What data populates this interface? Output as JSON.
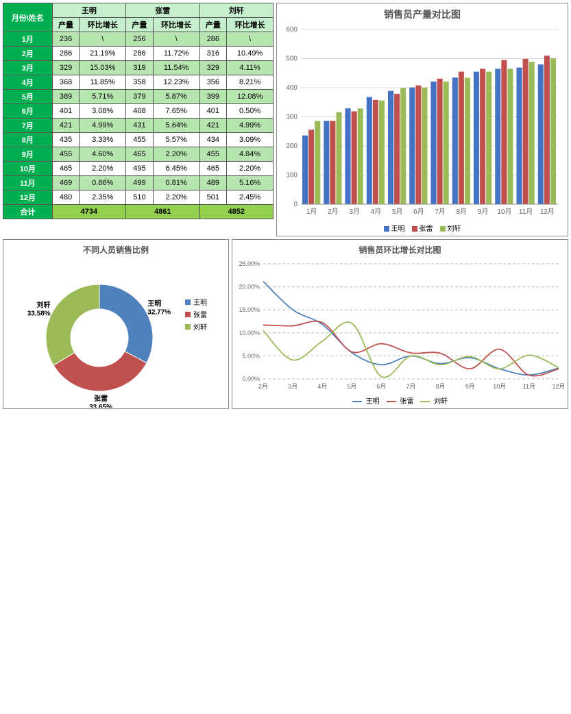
{
  "table": {
    "corner": "月份\\姓名",
    "people": [
      "王明",
      "张雷",
      "刘轩"
    ],
    "subcols": [
      "产量",
      "环比增长"
    ],
    "months": [
      "1月",
      "2月",
      "3月",
      "4月",
      "5月",
      "6月",
      "7月",
      "8月",
      "9月",
      "10月",
      "11月",
      "12月"
    ],
    "rows": [
      {
        "vals": [
          "236",
          "\\",
          "256",
          "\\",
          "286",
          "\\"
        ]
      },
      {
        "vals": [
          "286",
          "21.19%",
          "286",
          "11.72%",
          "316",
          "10.49%"
        ]
      },
      {
        "vals": [
          "329",
          "15.03%",
          "319",
          "11.54%",
          "329",
          "4.11%"
        ]
      },
      {
        "vals": [
          "368",
          "11.85%",
          "358",
          "12.23%",
          "356",
          "8.21%"
        ]
      },
      {
        "vals": [
          "389",
          "5.71%",
          "379",
          "5.87%",
          "399",
          "12.08%"
        ]
      },
      {
        "vals": [
          "401",
          "3.08%",
          "408",
          "7.65%",
          "401",
          "0.50%"
        ]
      },
      {
        "vals": [
          "421",
          "4.99%",
          "431",
          "5.64%",
          "421",
          "4.99%"
        ]
      },
      {
        "vals": [
          "435",
          "3.33%",
          "455",
          "5.57%",
          "434",
          "3.09%"
        ]
      },
      {
        "vals": [
          "455",
          "4.60%",
          "465",
          "2.20%",
          "455",
          "4.84%"
        ]
      },
      {
        "vals": [
          "465",
          "2.20%",
          "495",
          "6.45%",
          "465",
          "2.20%"
        ]
      },
      {
        "vals": [
          "469",
          "0.86%",
          "499",
          "0.81%",
          "489",
          "5.16%"
        ]
      },
      {
        "vals": [
          "480",
          "2.35%",
          "510",
          "2.20%",
          "501",
          "2.45%"
        ]
      }
    ],
    "total_label": "合计",
    "totals": [
      "4734",
      "4861",
      "4852"
    ],
    "alt_rows": [
      0,
      2,
      4,
      6,
      8,
      10
    ]
  },
  "bar_chart": {
    "title": "销售员产量对比图",
    "type": "bar",
    "categories": [
      "1月",
      "2月",
      "3月",
      "4月",
      "5月",
      "6月",
      "7月",
      "8月",
      "9月",
      "10月",
      "11月",
      "12月"
    ],
    "series": [
      {
        "name": "王明",
        "color": "#4472c4",
        "values": [
          236,
          286,
          329,
          368,
          389,
          401,
          421,
          435,
          455,
          465,
          469,
          480
        ]
      },
      {
        "name": "张雷",
        "color": "#c0504d",
        "values": [
          256,
          286,
          319,
          358,
          379,
          408,
          431,
          455,
          465,
          495,
          499,
          510
        ]
      },
      {
        "name": "刘轩",
        "color": "#9bbb59",
        "values": [
          286,
          316,
          329,
          356,
          399,
          401,
          421,
          434,
          455,
          465,
          489,
          501
        ]
      }
    ],
    "ylim": [
      0,
      600
    ],
    "ytick_step": 100,
    "axis_color": "#888",
    "grid_color": "#d9d9d9",
    "label_fontsize": 10
  },
  "donut_chart": {
    "title": "不同人员销售比例",
    "type": "donut",
    "slices": [
      {
        "name": "王明",
        "pct": 32.77,
        "color": "#4f81bd"
      },
      {
        "name": "张雷",
        "pct": 33.65,
        "color": "#c0504d"
      },
      {
        "name": "刘轩",
        "pct": 33.58,
        "color": "#9bbb59"
      }
    ],
    "label_fontsize": 10
  },
  "line_chart": {
    "title": "销售员环比增长对比图",
    "type": "line",
    "categories": [
      "2月",
      "3月",
      "4月",
      "5月",
      "6月",
      "7月",
      "8月",
      "9月",
      "10月",
      "11月",
      "12月"
    ],
    "series": [
      {
        "name": "王明",
        "color": "#4f81bd",
        "values": [
          21.19,
          15.03,
          11.85,
          5.71,
          3.08,
          4.99,
          3.33,
          4.6,
          2.2,
          0.86,
          2.35
        ]
      },
      {
        "name": "张雷",
        "color": "#c0504d",
        "values": [
          11.72,
          11.54,
          12.23,
          5.87,
          7.65,
          5.64,
          5.57,
          2.2,
          6.45,
          0.81,
          2.2
        ]
      },
      {
        "name": "刘轩",
        "color": "#9bbb59",
        "values": [
          10.49,
          4.11,
          8.21,
          12.08,
          0.5,
          4.99,
          3.09,
          4.84,
          2.2,
          5.16,
          2.45
        ]
      }
    ],
    "ylim": [
      0,
      25
    ],
    "ytick_step": 5,
    "y_format": "pct",
    "grid_color": "#bfbfbf",
    "grid_dash": "4,3",
    "line_width": 1.8,
    "label_fontsize": 9
  }
}
